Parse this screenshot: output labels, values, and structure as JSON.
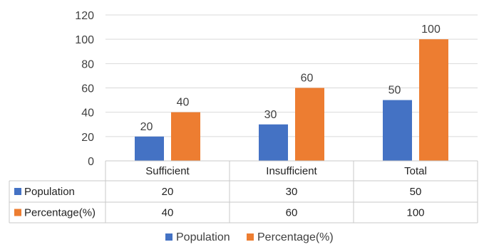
{
  "chart_data": {
    "type": "bar",
    "categories": [
      "Sufficient",
      "Insufficient",
      "Total"
    ],
    "series": [
      {
        "name": "Population",
        "values": [
          20,
          30,
          50
        ],
        "color": "#4472C4"
      },
      {
        "name": "Percentage(%)",
        "values": [
          40,
          60,
          100
        ],
        "color": "#ED7D31"
      }
    ],
    "ylim": [
      0,
      120
    ],
    "yticks": [
      0,
      20,
      40,
      60,
      80,
      100,
      120
    ],
    "grid": true,
    "data_table": true,
    "legend_position": "bottom"
  }
}
